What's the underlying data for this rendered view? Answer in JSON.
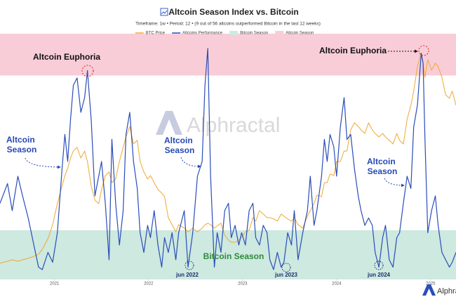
{
  "chart_data": {
    "type": "line",
    "title": "Altcoin Season Index vs. Bitcoin",
    "subtitle": "Timeframe: 1w • Period: 12 • (9 out of 56 altcoins outperformed Bitcoin in the last 12 weeks)",
    "x": [
      2020.42,
      2020.5,
      2020.55,
      2020.61,
      2020.66,
      2020.72,
      2020.78,
      2020.83,
      2020.87,
      2020.93,
      2020.98,
      2021.03,
      2021.08,
      2021.11,
      2021.14,
      2021.17,
      2021.2,
      2021.24,
      2021.28,
      2021.32,
      2021.35,
      2021.39,
      2021.43,
      2021.47,
      2021.5,
      2021.54,
      2021.58,
      2021.61,
      2021.65,
      2021.69,
      2021.73,
      2021.76,
      2021.8,
      2021.84,
      2021.88,
      2021.91,
      2021.95,
      2021.99,
      2022.02,
      2022.06,
      2022.1,
      2022.14,
      2022.17,
      2022.21,
      2022.25,
      2022.29,
      2022.32,
      2022.38,
      2022.42,
      2022.47,
      2022.52,
      2022.57,
      2022.6,
      2022.63,
      2022.66,
      2022.7,
      2022.73,
      2022.77,
      2022.81,
      2022.85,
      2022.88,
      2022.92,
      2022.96,
      2022.99,
      2023.03,
      2023.07,
      2023.11,
      2023.14,
      2023.18,
      2023.22,
      2023.26,
      2023.29,
      2023.33,
      2023.37,
      2023.41,
      2023.44,
      2023.48,
      2023.52,
      2023.55,
      2023.59,
      2023.64,
      2023.69,
      2023.72,
      2023.76,
      2023.79,
      2023.84,
      2023.87,
      2023.9,
      2023.93,
      2023.97,
      2024.0,
      2024.04,
      2024.08,
      2024.11,
      2024.15,
      2024.19,
      2024.23,
      2024.26,
      2024.3,
      2024.34,
      2024.38,
      2024.41,
      2024.45,
      2024.49,
      2024.52,
      2024.56,
      2024.6,
      2024.64,
      2024.67,
      2024.71,
      2024.75,
      2024.79,
      2024.82,
      2024.86,
      2024.9,
      2024.92,
      2024.94,
      2024.97,
      2025.01,
      2025.05,
      2025.08,
      2025.12,
      2025.16,
      2025.2,
      2025.23,
      2025.27
    ],
    "series": [
      {
        "name": "BTC Price",
        "color": "#f0a830",
        "axis": "y2",
        "values": [
          7600,
          8500,
          9200,
          8500,
          9200,
          9900,
          10800,
          11800,
          14100,
          19100,
          25600,
          35500,
          43700,
          48600,
          51900,
          56800,
          60100,
          61800,
          56800,
          60100,
          55200,
          43700,
          37100,
          35500,
          42100,
          48600,
          50300,
          45300,
          47000,
          55200,
          61800,
          66700,
          71600,
          63400,
          65100,
          55200,
          50300,
          47000,
          48600,
          45300,
          42100,
          40400,
          38800,
          28900,
          25600,
          22300,
          25600,
          24000,
          22300,
          24000,
          22300,
          24000,
          25600,
          26300,
          25600,
          24000,
          25000,
          26300,
          20700,
          18400,
          17400,
          17400,
          18400,
          19700,
          22300,
          23000,
          28900,
          27300,
          32200,
          30600,
          28900,
          28900,
          28300,
          27300,
          30600,
          29600,
          28300,
          27300,
          28900,
          25600,
          24000,
          29600,
          32200,
          35500,
          39400,
          38800,
          45300,
          45300,
          49300,
          48600,
          55200,
          55200,
          60100,
          60100,
          70000,
          73300,
          71600,
          70000,
          68300,
          73300,
          70000,
          68300,
          66700,
          68300,
          66700,
          65100,
          63400,
          68300,
          65100,
          63400,
          74900,
          81500,
          88100,
          99600,
          106100,
          101200,
          94600,
          102900,
          97900,
          101200,
          99600,
          94600,
          86400,
          84800,
          88100,
          81500
        ]
      },
      {
        "name": "Altcoins Performance",
        "color": "#2a4db8",
        "values": [
          31,
          39,
          28,
          42,
          34,
          25,
          14,
          5,
          4,
          11,
          7,
          19,
          45,
          59,
          48,
          65,
          79,
          82,
          68,
          74,
          85,
          65,
          34,
          42,
          48,
          31,
          8,
          57,
          31,
          14,
          28,
          59,
          68,
          48,
          37,
          19,
          11,
          22,
          17,
          28,
          14,
          5,
          17,
          11,
          19,
          8,
          19,
          28,
          5,
          19,
          42,
          48,
          79,
          94,
          42,
          5,
          19,
          11,
          28,
          31,
          17,
          22,
          14,
          19,
          14,
          28,
          31,
          17,
          14,
          22,
          19,
          8,
          4,
          11,
          5,
          7,
          19,
          14,
          28,
          8,
          19,
          28,
          42,
          22,
          28,
          42,
          57,
          48,
          59,
          54,
          42,
          62,
          74,
          57,
          59,
          45,
          34,
          28,
          22,
          25,
          22,
          11,
          5,
          17,
          22,
          8,
          5,
          17,
          19,
          31,
          42,
          37,
          62,
          71,
          92,
          88,
          57,
          19,
          28,
          34,
          22,
          11,
          8,
          5,
          7,
          11
        ]
      }
    ],
    "bands": [
      {
        "name": "Bitcoin Season",
        "color": "#cde9e0",
        "range": [
          0,
          20
        ]
      },
      {
        "name": "Altcoin Season",
        "color": "#f8cdd8",
        "range": [
          83,
          100
        ]
      }
    ],
    "xlim": [
      2020.42,
      2025.27
    ],
    "xticks": [
      2021,
      2022,
      2023,
      2024,
      2025
    ],
    "ylim": [
      0,
      100
    ],
    "y2lim": [
      0,
      115000
    ],
    "watermark": "Alphractal",
    "annotations": [
      "Altcoin Euphoria",
      "Altcoin Euphoria",
      [
        "Altcoin",
        "Season"
      ],
      [
        "Altcoin",
        "Season"
      ],
      [
        "Altcoin",
        "Season"
      ],
      "Bitcoin Season",
      "jun 2022",
      "jun 2023",
      "jun 2024"
    ],
    "footer_logo": "Alphractal"
  }
}
